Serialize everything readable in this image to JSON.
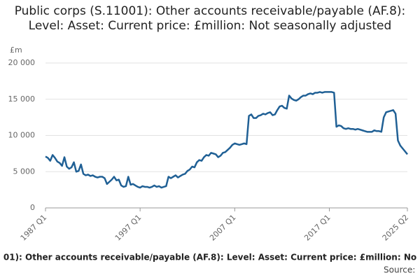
{
  "chart_data": {
    "type": "line",
    "title": "Public corps (S.11001): Other accounts receivable/payable (AF.8): Level: Asset: Current price: £million: Not seasonally adjusted",
    "y_unit": "£m",
    "footer": "01): Other accounts receivable/payable (AF.8): Level: Asset: Current price: £million: No",
    "source": "Source:",
    "color": "#206095",
    "grid": true,
    "ylim": [
      0,
      20000
    ],
    "yticks": [
      0,
      {
        "value": 5000,
        "label": "5 000"
      },
      {
        "value": 10000,
        "label": "10 000"
      },
      {
        "value": 15000,
        "label": "15 000"
      },
      {
        "value": 20000,
        "label": "20 000"
      }
    ],
    "categories": [
      "1987 Q1",
      null,
      null,
      null,
      null,
      null,
      null,
      null,
      null,
      null,
      null,
      null,
      null,
      null,
      null,
      null,
      null,
      null,
      null,
      null,
      null,
      null,
      null,
      null,
      null,
      null,
      null,
      null,
      null,
      null,
      null,
      null,
      null,
      null,
      null,
      null,
      null,
      null,
      null,
      null,
      "1997 Q1",
      null,
      null,
      null,
      null,
      null,
      null,
      null,
      null,
      null,
      null,
      null,
      null,
      null,
      null,
      null,
      null,
      null,
      null,
      null,
      null,
      null,
      null,
      null,
      null,
      null,
      null,
      null,
      null,
      null,
      null,
      null,
      null,
      null,
      null,
      null,
      null,
      null,
      null,
      null,
      "2007 Q1",
      null,
      null,
      null,
      null,
      null,
      null,
      null,
      null,
      null,
      null,
      null,
      null,
      null,
      null,
      null,
      null,
      null,
      null,
      null,
      null,
      null,
      null,
      null,
      null,
      null,
      null,
      null,
      null,
      null,
      null,
      null,
      null,
      null,
      null,
      null,
      null,
      null,
      null,
      null,
      "2017 Q1",
      null,
      null,
      null,
      null,
      null,
      null,
      null,
      null,
      null,
      null,
      null,
      null,
      null,
      null,
      null,
      null,
      null,
      null,
      null,
      null,
      null,
      null,
      null,
      null,
      null,
      null,
      null,
      null,
      null,
      null,
      null,
      null,
      "2025 Q2"
    ],
    "values": [
      7100,
      6900,
      6500,
      7300,
      6900,
      6400,
      6200,
      5800,
      7000,
      5700,
      5400,
      5600,
      6300,
      5000,
      5100,
      6000,
      4700,
      4500,
      4600,
      4400,
      4500,
      4300,
      4200,
      4300,
      4300,
      4100,
      3300,
      3600,
      3900,
      4300,
      3800,
      3900,
      3100,
      2900,
      3000,
      4300,
      3200,
      3300,
      3100,
      2900,
      2800,
      3000,
      2900,
      2900,
      2800,
      2900,
      3100,
      2900,
      3000,
      2800,
      2900,
      3000,
      4300,
      4100,
      4300,
      4500,
      4200,
      4400,
      4600,
      4700,
      5100,
      5300,
      5700,
      5600,
      6300,
      6600,
      6500,
      7000,
      7300,
      7200,
      7600,
      7500,
      7400,
      7000,
      7200,
      7600,
      7700,
      8000,
      8300,
      8700,
      8900,
      8800,
      8700,
      8800,
      8900,
      8800,
      12700,
      12900,
      12400,
      12400,
      12700,
      12800,
      13000,
      12900,
      13100,
      13200,
      12800,
      12900,
      13500,
      14000,
      14100,
      13800,
      13700,
      15500,
      15100,
      14900,
      14800,
      15000,
      15300,
      15500,
      15500,
      15700,
      15800,
      15700,
      15900,
      15900,
      16000,
      15900,
      16000,
      16000,
      16000,
      16000,
      15900,
      11200,
      11400,
      11300,
      11000,
      10900,
      11000,
      10900,
      10900,
      10800,
      10900,
      10800,
      10700,
      10600,
      10500,
      10500,
      10500,
      10700,
      10600,
      10600,
      10500,
      12500,
      13200,
      13300,
      13400,
      13500,
      13000,
      9300,
      8600,
      8200,
      7800,
      7400
    ]
  }
}
